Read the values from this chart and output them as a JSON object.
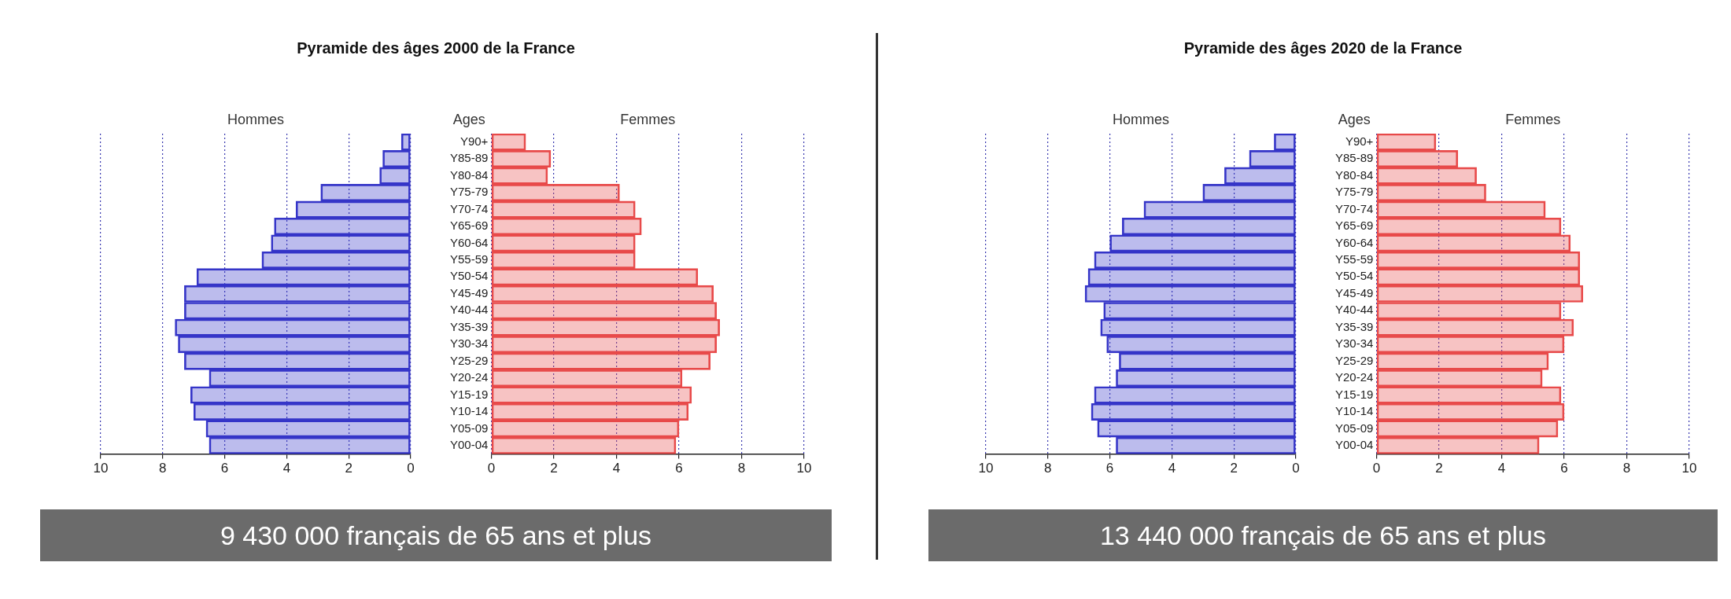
{
  "chart_data": [
    {
      "type": "bar",
      "orientation": "horizontal",
      "title": "Pyramide des âges 2000 de la France",
      "annotations": [
        "9 430 000 français de 65 ans et plus"
      ],
      "categories": [
        null,
        null,
        null,
        null,
        null,
        null,
        null,
        null,
        null,
        null,
        null,
        null,
        null,
        null,
        null,
        null,
        null,
        null,
        null
      ],
      "series": [
        {
          "name": "Hommes",
          "color": "#3535c8",
          "values": [
            0.3,
            0.9,
            1.0,
            2.9,
            3.7,
            4.4,
            4.5,
            4.8,
            6.9,
            7.3,
            7.3,
            7.6,
            7.5,
            7.3,
            6.5,
            7.1,
            7.0,
            6.6,
            6.5
          ]
        }
      ],
      "xlim": [
        10,
        0
      ],
      "xticks": [
        10,
        8,
        6,
        4,
        2,
        0
      ],
      "grid": "x",
      "legend": false,
      "tick_labels": "x"
    },
    {
      "type": "bar",
      "orientation": "horizontal",
      "ylabel": "Ages",
      "categories": [
        "Y90+",
        "Y85-89",
        "Y80-84",
        "Y75-79",
        "Y70-74",
        "Y65-69",
        "Y60-64",
        "Y55-59",
        "Y50-54",
        "Y45-49",
        "Y40-44",
        "Y35-39",
        "Y30-34",
        "Y25-29",
        "Y20-24",
        "Y15-19",
        "Y10-14",
        "Y05-09",
        "Y00-04"
      ],
      "series": [
        {
          "name": "Femmes",
          "color": "#e84a4a",
          "values": [
            1.1,
            1.9,
            1.8,
            4.1,
            4.6,
            4.8,
            4.6,
            4.6,
            6.6,
            7.1,
            7.2,
            7.3,
            7.2,
            7.0,
            6.1,
            6.4,
            6.3,
            6.0,
            5.9
          ]
        }
      ],
      "xlim": [
        0,
        10
      ],
      "xticks": [
        0,
        2,
        4,
        6,
        8,
        10
      ],
      "grid": "x",
      "legend": false
    },
    {
      "type": "bar",
      "orientation": "horizontal",
      "title": "Pyramide des âges 2020 de la France",
      "annotations": [
        "13 440 000 français de 65 ans et plus"
      ],
      "categories": [
        null,
        null,
        null,
        null,
        null,
        null,
        null,
        null,
        null,
        null,
        null,
        null,
        null,
        null,
        null,
        null,
        null,
        null,
        null
      ],
      "series": [
        {
          "name": "Hommes",
          "color": "#3535c8",
          "values": [
            0.7,
            1.5,
            2.3,
            3.0,
            4.9,
            5.6,
            6.0,
            6.5,
            6.7,
            6.8,
            6.2,
            6.3,
            6.1,
            5.7,
            5.8,
            6.5,
            6.6,
            6.4,
            5.8
          ]
        }
      ],
      "xlim": [
        10,
        0
      ],
      "xticks": [
        10,
        8,
        6,
        4,
        2,
        0
      ],
      "grid": "x",
      "legend": false,
      "tick_labels": "x"
    },
    {
      "type": "bar",
      "orientation": "horizontal",
      "ylabel": "Ages",
      "categories": [
        "Y90+",
        "Y85-89",
        "Y80-84",
        "Y75-79",
        "Y70-74",
        "Y65-69",
        "Y60-64",
        "Y55-59",
        "Y50-54",
        "Y45-49",
        "Y40-44",
        "Y35-39",
        "Y30-34",
        "Y25-29",
        "Y20-24",
        "Y15-19",
        "Y10-14",
        "Y05-09",
        "Y00-04"
      ],
      "series": [
        {
          "name": "Femmes",
          "color": "#e84a4a",
          "values": [
            1.9,
            2.6,
            3.2,
            3.5,
            5.4,
            5.9,
            6.2,
            6.5,
            6.5,
            6.6,
            5.9,
            6.3,
            6.0,
            5.5,
            5.3,
            5.9,
            6.0,
            5.8,
            5.2
          ]
        }
      ],
      "xlim": [
        0,
        10
      ],
      "xticks": [
        0,
        2,
        4,
        6,
        8,
        10
      ],
      "grid": "x",
      "legend": false
    }
  ]
}
